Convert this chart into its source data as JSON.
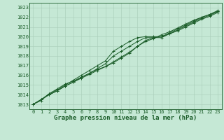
{
  "title": "Graphe pression niveau de la mer (hPa)",
  "bg_color": "#c5e8d5",
  "grid_color": "#a8ccb8",
  "line_color": "#1a5c28",
  "x_values": [
    0,
    1,
    2,
    3,
    4,
    5,
    6,
    7,
    8,
    9,
    10,
    11,
    12,
    13,
    14,
    15,
    16,
    17,
    18,
    19,
    20,
    21,
    22,
    23
  ],
  "series": [
    [
      1013.0,
      1013.4,
      1014.1,
      1014.6,
      1015.1,
      1015.4,
      1015.8,
      1016.2,
      1016.6,
      1016.9,
      1017.3,
      1017.8,
      1018.3,
      1019.0,
      1019.5,
      1019.8,
      1020.2,
      1020.5,
      1020.9,
      1021.3,
      1021.7,
      1022.0,
      1022.3,
      1022.7
    ],
    [
      1013.0,
      1013.5,
      1014.1,
      1014.5,
      1015.0,
      1015.5,
      1016.0,
      1016.5,
      1017.0,
      1017.5,
      1018.5,
      1019.0,
      1019.5,
      1019.9,
      1020.0,
      1020.0,
      1020.0,
      1020.3,
      1020.7,
      1021.1,
      1021.5,
      1021.9,
      1022.2,
      1022.6
    ],
    [
      1013.0,
      1013.5,
      1014.0,
      1014.4,
      1014.9,
      1015.3,
      1015.8,
      1016.2,
      1016.7,
      1017.2,
      1018.0,
      1018.5,
      1019.0,
      1019.5,
      1019.9,
      1019.9,
      1019.9,
      1020.3,
      1020.6,
      1021.0,
      1021.4,
      1021.8,
      1022.1,
      1022.5
    ],
    [
      1013.0,
      1013.5,
      1014.0,
      1014.4,
      1014.9,
      1015.3,
      1015.7,
      1016.1,
      1016.5,
      1016.9,
      1017.4,
      1017.9,
      1018.4,
      1019.0,
      1019.6,
      1019.9,
      1020.0,
      1020.4,
      1020.8,
      1021.2,
      1021.6,
      1022.0,
      1022.3,
      1022.6
    ]
  ],
  "ylim": [
    1012.5,
    1023.5
  ],
  "yticks": [
    1013,
    1014,
    1015,
    1016,
    1017,
    1018,
    1019,
    1020,
    1021,
    1022,
    1023
  ],
  "xlim": [
    -0.5,
    23.5
  ],
  "xticks": [
    0,
    1,
    2,
    3,
    4,
    5,
    6,
    7,
    8,
    9,
    10,
    11,
    12,
    13,
    14,
    15,
    16,
    17,
    18,
    19,
    20,
    21,
    22,
    23
  ],
  "marker": "+",
  "markersize": 3.0,
  "linewidth": 0.7,
  "title_fontsize": 6.5,
  "tick_fontsize": 5.0,
  "fig_width": 3.2,
  "fig_height": 2.0,
  "dpi": 100
}
